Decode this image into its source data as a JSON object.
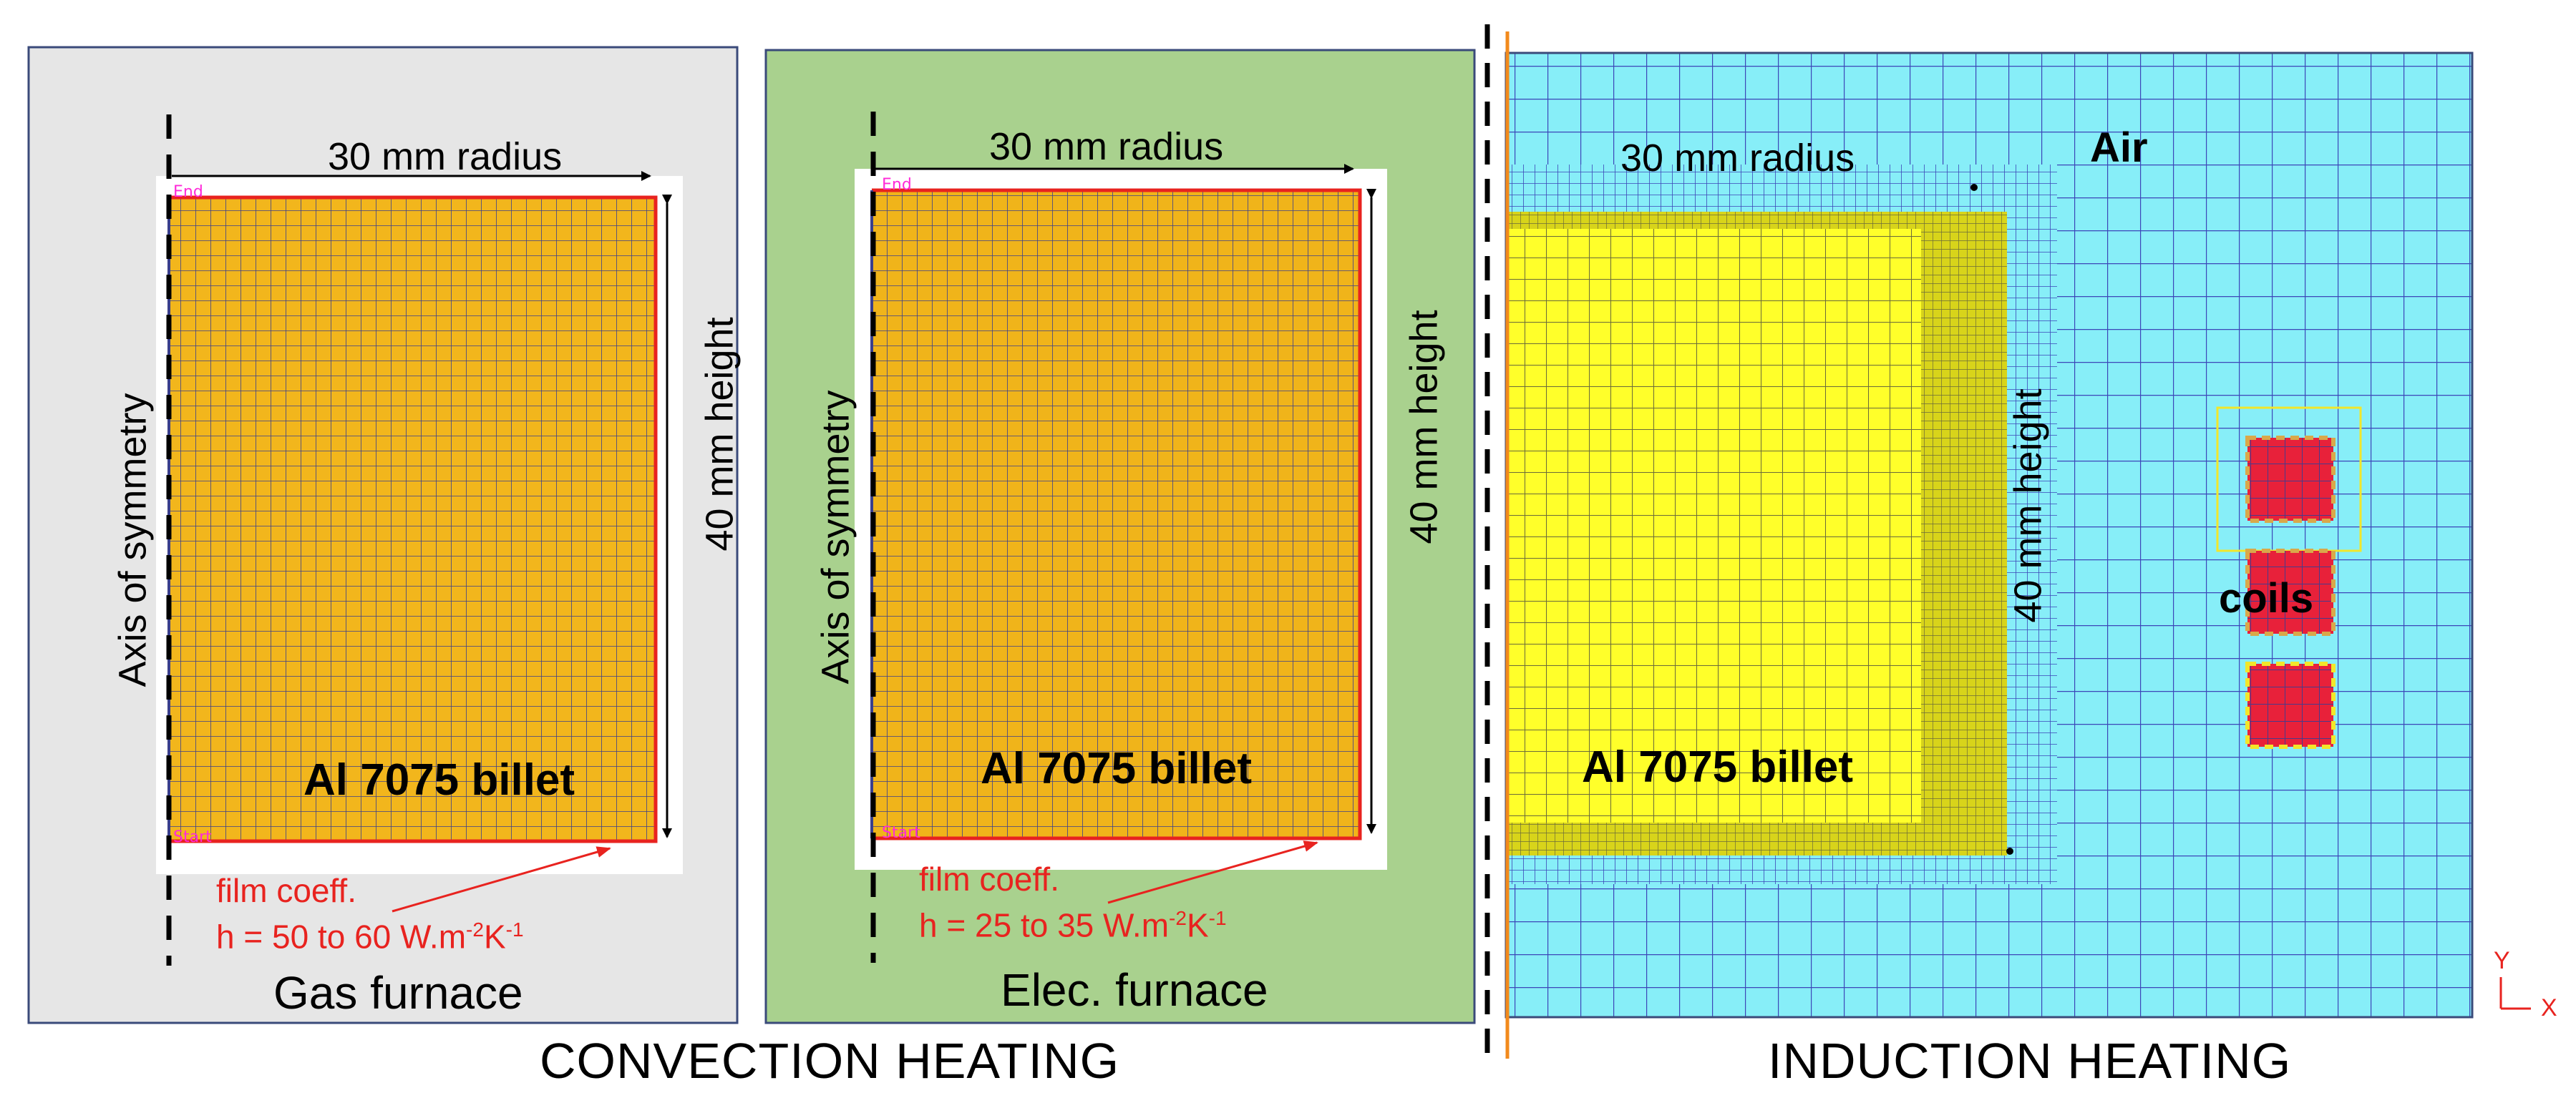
{
  "panels": {
    "gas": {
      "radius_label": "30 mm radius",
      "height_label": "40 mm height",
      "axis_label": "Axis of symmetry",
      "billet_label": "Al 7075 billet",
      "film_line1": "film coeff.",
      "film_line2_prefix": "h = 50 to 60 W.m",
      "film_exp1": "-2",
      "film_mid": "K",
      "film_exp2": "-1",
      "furnace_label": "Gas furnace",
      "corner_top": "End",
      "corner_bottom": "Start",
      "background_color": "#e6e6e6"
    },
    "elec": {
      "radius_label": "30 mm radius",
      "height_label": "40 mm height",
      "axis_label": "Axis of symmetry",
      "billet_label": "Al 7075 billet",
      "film_line1": "film coeff.",
      "film_line2_prefix": "h = 25 to 35 W.m",
      "film_exp1": "-2",
      "film_mid": "K",
      "film_exp2": "-1",
      "furnace_label": "Elec. furnace",
      "corner_top": "End",
      "corner_bottom": "Start",
      "background_color": "#a9d18e"
    },
    "induction": {
      "radius_label": "30 mm radius",
      "height_label": "40 mm height",
      "air_label": "Air",
      "coils_label": "coils",
      "billet_label": "Al 7075 billet",
      "axis_y": "Y",
      "axis_x": "X",
      "air_color": "#87eef8",
      "billet_color": "#ffff2a",
      "coil_color": "#e8213a"
    }
  },
  "sections": {
    "convection": "CONVECTION HEATING",
    "induction": "INDUCTION HEATING"
  },
  "colors": {
    "billet_mesh_fill": "#f2b61c",
    "mesh_line": "#3a3f8c",
    "boundary_red": "#e8231f"
  }
}
